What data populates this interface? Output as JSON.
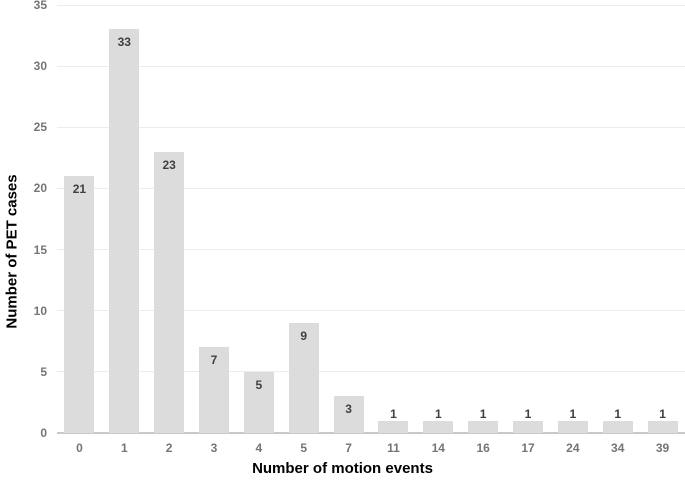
{
  "chart_data": {
    "type": "bar",
    "title": "",
    "xlabel": "Number of motion events",
    "ylabel": "Number of PET cases",
    "categories": [
      "0",
      "1",
      "2",
      "3",
      "4",
      "5",
      "7",
      "11",
      "14",
      "16",
      "17",
      "24",
      "34",
      "39"
    ],
    "values": [
      21,
      33,
      23,
      7,
      5,
      9,
      3,
      1,
      1,
      1,
      1,
      1,
      1,
      1
    ],
    "value_labels": [
      "21",
      "33",
      "23",
      "7",
      "5",
      "9",
      "3",
      "1",
      "1",
      "1",
      "1",
      "1",
      "1",
      "1"
    ],
    "ylim": [
      0,
      35
    ],
    "yticks": [
      0,
      5,
      10,
      15,
      20,
      25,
      30,
      35
    ],
    "grid": true,
    "legend_position": "none",
    "colors": {
      "background": "#ffffff",
      "bar_fill": "#dcdcdc",
      "value_label": "#404040",
      "tick_label": "#757575",
      "gridline": "#ececec",
      "baseline": "#c9c9c9",
      "axis_title": "#000000"
    }
  }
}
